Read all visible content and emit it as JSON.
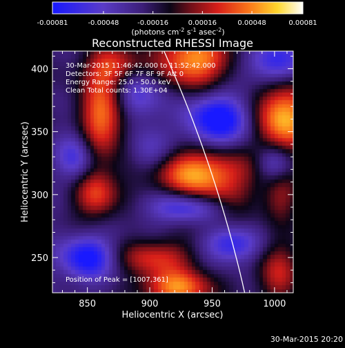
{
  "chart_data": {
    "type": "heatmap",
    "title": "Reconstructed RHESSI Image",
    "xlabel": "Heliocentric X (arcsec)",
    "ylabel": "Heliocentric Y (arcsec)",
    "xlim": [
      822,
      1015
    ],
    "ylim": [
      222,
      414
    ],
    "x_ticks": [
      850,
      900,
      950,
      1000
    ],
    "y_ticks": [
      250,
      300,
      350,
      400
    ],
    "x_tick_labels": [
      "850",
      "900",
      "950",
      "1000"
    ],
    "y_tick_labels": [
      "250",
      "300",
      "350",
      "400"
    ],
    "colorbar": {
      "ticks": [
        -0.00081,
        -0.00048,
        -0.00016,
        0.00016,
        0.00048,
        0.00081
      ],
      "tick_labels": [
        "-0.00081",
        "-0.00048",
        "-0.00016",
        "0.00016",
        "0.00048",
        "0.00081"
      ],
      "label": "(photons cm-2 s-1 asec-2)",
      "min": -0.00081,
      "max": 0.00081
    },
    "annotations": [
      "30-Mar-2015 11:46:42.000 to 11:52:42.000",
      "Detectors: 3F 5F 6F 7F 8F 9F Att 0",
      "Energy Range: 25.0 - 50.0 keV",
      "Clean    Total counts: 1.30E+04",
      "Position of Peak = [1007,361]"
    ],
    "peak": [
      1007,
      361
    ],
    "sources": [
      {
        "x": 1007,
        "y": 361,
        "amp": 0.00081,
        "sx": 16,
        "sy": 20
      },
      {
        "x": 935,
        "y": 407,
        "amp": 0.00074,
        "sx": 22,
        "sy": 16
      },
      {
        "x": 862,
        "y": 363,
        "amp": 0.00068,
        "sx": 13,
        "sy": 22
      },
      {
        "x": 938,
        "y": 318,
        "amp": 0.00072,
        "sx": 30,
        "sy": 13
      },
      {
        "x": 948,
        "y": 292,
        "amp": 0.00055,
        "sx": 22,
        "sy": 12
      },
      {
        "x": 857,
        "y": 300,
        "amp": 0.00052,
        "sx": 13,
        "sy": 14
      },
      {
        "x": 905,
        "y": 250,
        "amp": 0.00048,
        "sx": 22,
        "sy": 10
      },
      {
        "x": 922,
        "y": 226,
        "amp": 0.0007,
        "sx": 20,
        "sy": 10
      },
      {
        "x": 870,
        "y": 402,
        "amp": 0.00048,
        "sx": 16,
        "sy": 12
      },
      {
        "x": 1003,
        "y": 238,
        "amp": 0.00042,
        "sx": 12,
        "sy": 18
      },
      {
        "x": 1005,
        "y": 298,
        "amp": 0.00032,
        "sx": 10,
        "sy": 14
      },
      {
        "x": 955,
        "y": 360,
        "amp": -0.0007,
        "sx": 18,
        "sy": 14
      },
      {
        "x": 935,
        "y": 290,
        "amp": -0.0008,
        "sx": 22,
        "sy": 9
      },
      {
        "x": 965,
        "y": 260,
        "amp": -0.0005,
        "sx": 15,
        "sy": 10
      },
      {
        "x": 850,
        "y": 250,
        "amp": -0.00065,
        "sx": 15,
        "sy": 12
      },
      {
        "x": 890,
        "y": 380,
        "amp": -0.0004,
        "sx": 14,
        "sy": 14
      },
      {
        "x": 1000,
        "y": 405,
        "amp": -0.0005,
        "sx": 18,
        "sy": 12
      },
      {
        "x": 840,
        "y": 330,
        "amp": -0.0004,
        "sx": 10,
        "sy": 14
      },
      {
        "x": 900,
        "y": 330,
        "amp": -0.00035,
        "sx": 12,
        "sy": 14
      },
      {
        "x": 1000,
        "y": 325,
        "amp": -0.0004,
        "sx": 10,
        "sy": 10
      }
    ]
  },
  "footer": {
    "timestamp": "30-Mar-2015 20:20"
  }
}
